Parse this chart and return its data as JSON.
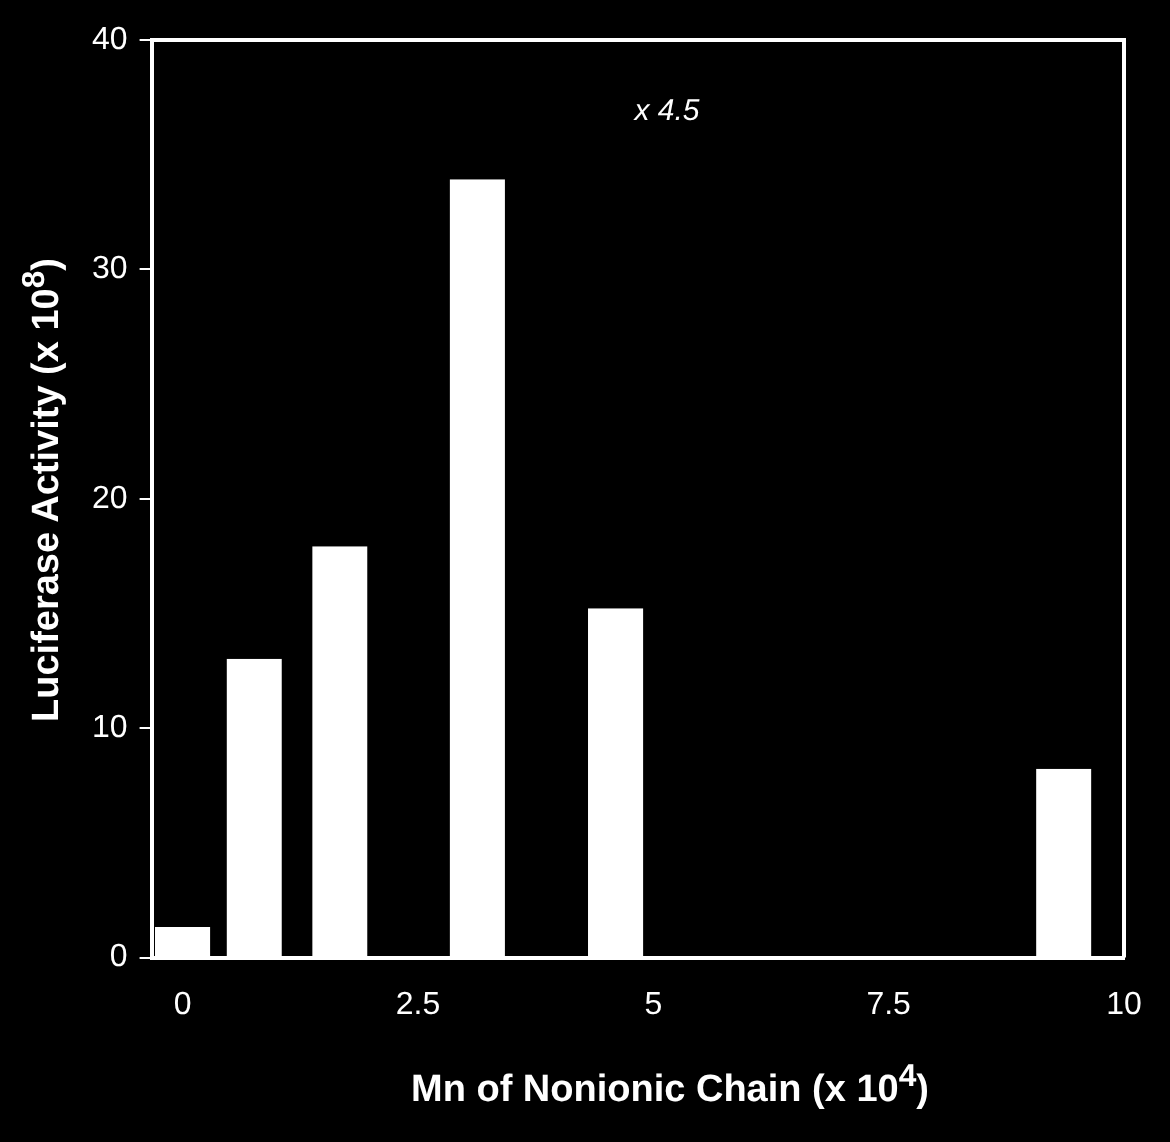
{
  "chart_data": {
    "type": "bar",
    "xlabel": "Mn of Nonionic Chain (x 10$^{4}$)",
    "ylabel": "Luciferase Activity (x 10$^{8}$)",
    "x": [
      0,
      0.76,
      1.67,
      3.13,
      4.6,
      9.36
    ],
    "values": [
      1.3,
      13,
      17.9,
      33.9,
      15.2,
      8.2
    ],
    "color": "#ffffff",
    "xlim": [
      -0.33,
      10
    ],
    "xticks": [
      0,
      2.5,
      5,
      7.5,
      10
    ],
    "ylim": [
      0,
      40
    ],
    "yticks": [
      0,
      10,
      20,
      30,
      40
    ],
    "grid": false,
    "legend": false,
    "annotations": [
      "x 4.5"
    ]
  }
}
